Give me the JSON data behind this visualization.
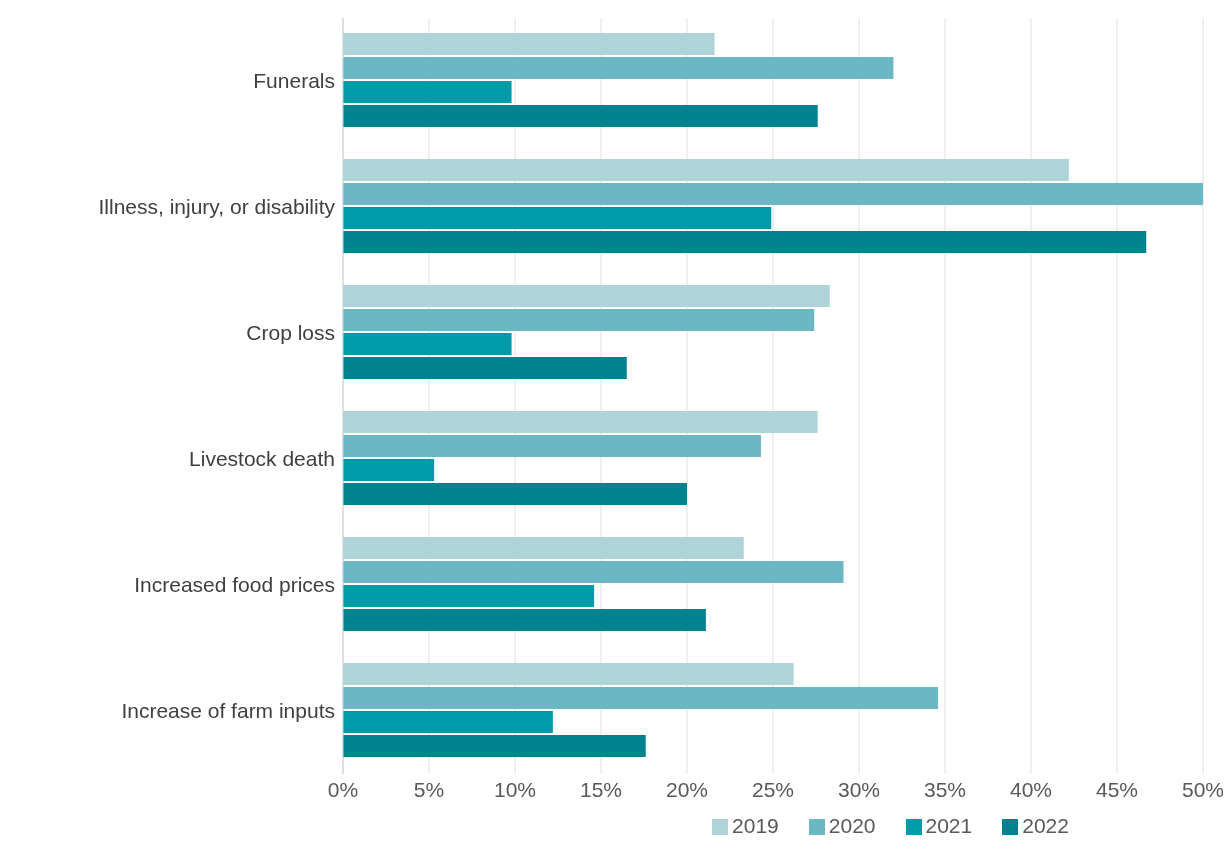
{
  "chart_data": {
    "type": "bar",
    "orientation": "horizontal",
    "categories": [
      "Funerals",
      "Illness, injury, or disability",
      "Crop loss",
      "Livestock death",
      "Increased food prices",
      "Increase of farm inputs"
    ],
    "series": [
      {
        "name": "2019",
        "color": "#aed4d9",
        "values": [
          21.6,
          42.2,
          28.3,
          27.6,
          23.3,
          26.2
        ]
      },
      {
        "name": "2020",
        "color": "#6bb7c3",
        "values": [
          32.0,
          50.0,
          27.4,
          24.3,
          29.1,
          34.6
        ]
      },
      {
        "name": "2021",
        "color": "#009ba9",
        "values": [
          9.8,
          24.9,
          9.8,
          5.3,
          14.6,
          12.2
        ]
      },
      {
        "name": "2022",
        "color": "#00838f",
        "values": [
          27.6,
          46.7,
          16.5,
          20.0,
          21.1,
          17.6
        ]
      }
    ],
    "xlim": [
      0,
      50
    ],
    "xticks": [
      {
        "value": 0,
        "label": "0%"
      },
      {
        "value": 5,
        "label": "5%"
      },
      {
        "value": 10,
        "label": "10%"
      },
      {
        "value": 15,
        "label": "15%"
      },
      {
        "value": 20,
        "label": "20%"
      },
      {
        "value": 25,
        "label": "25%"
      },
      {
        "value": 30,
        "label": "30%"
      },
      {
        "value": 35,
        "label": "35%"
      },
      {
        "value": 40,
        "label": "40%"
      },
      {
        "value": 45,
        "label": "45%"
      },
      {
        "value": 50,
        "label": "50%"
      }
    ],
    "grid": "x",
    "legend": "bottom"
  }
}
